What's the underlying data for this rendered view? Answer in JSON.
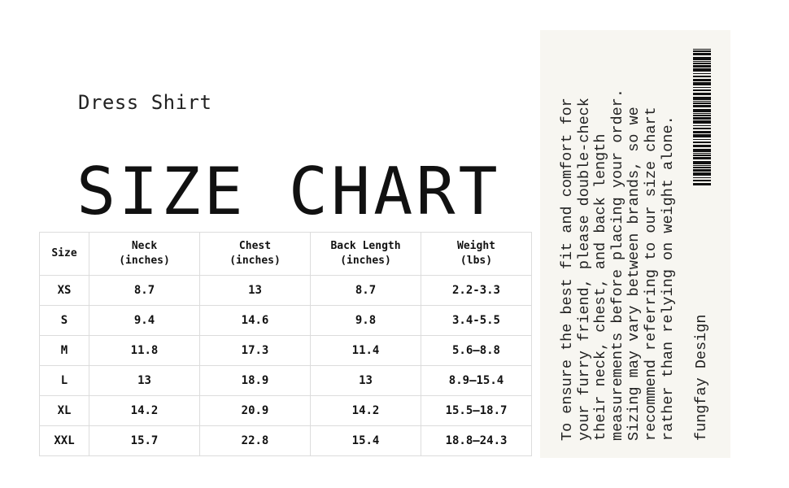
{
  "header": {
    "subtitle": "Dress Shirt",
    "title": "SIZE CHART"
  },
  "table": {
    "headers": [
      [
        "Size",
        ""
      ],
      [
        "Neck",
        "(inches)"
      ],
      [
        "Chest",
        "(inches)"
      ],
      [
        "Back Length",
        "(inches)"
      ],
      [
        "Weight",
        "(lbs)"
      ]
    ],
    "rows": [
      [
        "XS",
        "8.7",
        "13",
        "8.7",
        "2.2-3.3"
      ],
      [
        "S",
        "9.4",
        "14.6",
        "9.8",
        "3.4-5.5"
      ],
      [
        "M",
        "11.8",
        "17.3",
        "11.4",
        "5.6–8.8"
      ],
      [
        "L",
        "13",
        "18.9",
        "13",
        "8.9–15.4"
      ],
      [
        "XL",
        "14.2",
        "20.9",
        "14.2",
        "15.5–18.7"
      ],
      [
        "XXL",
        "15.7",
        "22.8",
        "15.4",
        "18.8–24.3"
      ]
    ]
  },
  "panel": {
    "note_lines": [
      "To ensure the best fit and comfort for",
      "your furry friend, please double-check",
      "their neck, chest, and back length",
      "measurements before placing your order.",
      "Sizing may vary between brands, so we",
      "recommend referring to our size chart",
      "rather than relying on weight alone."
    ],
    "brand": "fungfay Design",
    "barcode_icon": "barcode-icon",
    "background": "#f7f6f1"
  }
}
